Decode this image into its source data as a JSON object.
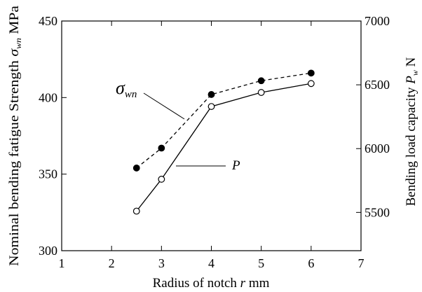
{
  "chart_data": {
    "type": "line",
    "xlabel_prefix": "Radius of notch ",
    "xlabel_var": "r",
    "xlabel_unit": "  mm",
    "ylabel_left_prefix": "Nominal bending fatigue Strength ",
    "ylabel_left_sym": "σ",
    "ylabel_left_sub": "wn",
    "ylabel_left_unit": " MPa",
    "ylabel_right_prefix": "Bending load capacity ",
    "ylabel_right_var": "P",
    "ylabel_right_sub": "w",
    "ylabel_right_unit": " N",
    "xlim": [
      1,
      7
    ],
    "ylim_left": [
      300,
      450
    ],
    "ylim_right": [
      5200,
      7000
    ],
    "x_ticks": [
      "1",
      "2",
      "3",
      "4",
      "5",
      "6",
      "7"
    ],
    "y_left_ticks": [
      "300",
      "350",
      "400",
      "450"
    ],
    "y_right_ticks": [
      "5500",
      "6000",
      "6500",
      "7000"
    ],
    "series": [
      {
        "name": "σwn",
        "axis": "left",
        "marker": "filled-circle",
        "line": "dashed",
        "x": [
          2.5,
          3,
          4,
          5,
          6
        ],
        "y": [
          354,
          367,
          402,
          411,
          416
        ]
      },
      {
        "name": "P",
        "axis": "right",
        "marker": "open-circle",
        "line": "solid",
        "x": [
          2.5,
          3,
          4,
          5,
          6
        ],
        "y": [
          5510,
          5760,
          6330,
          6440,
          6510
        ]
      }
    ],
    "annotations": [
      {
        "sym": "σ",
        "sub": "wn"
      },
      {
        "sym": "P",
        "sub": ""
      }
    ]
  }
}
